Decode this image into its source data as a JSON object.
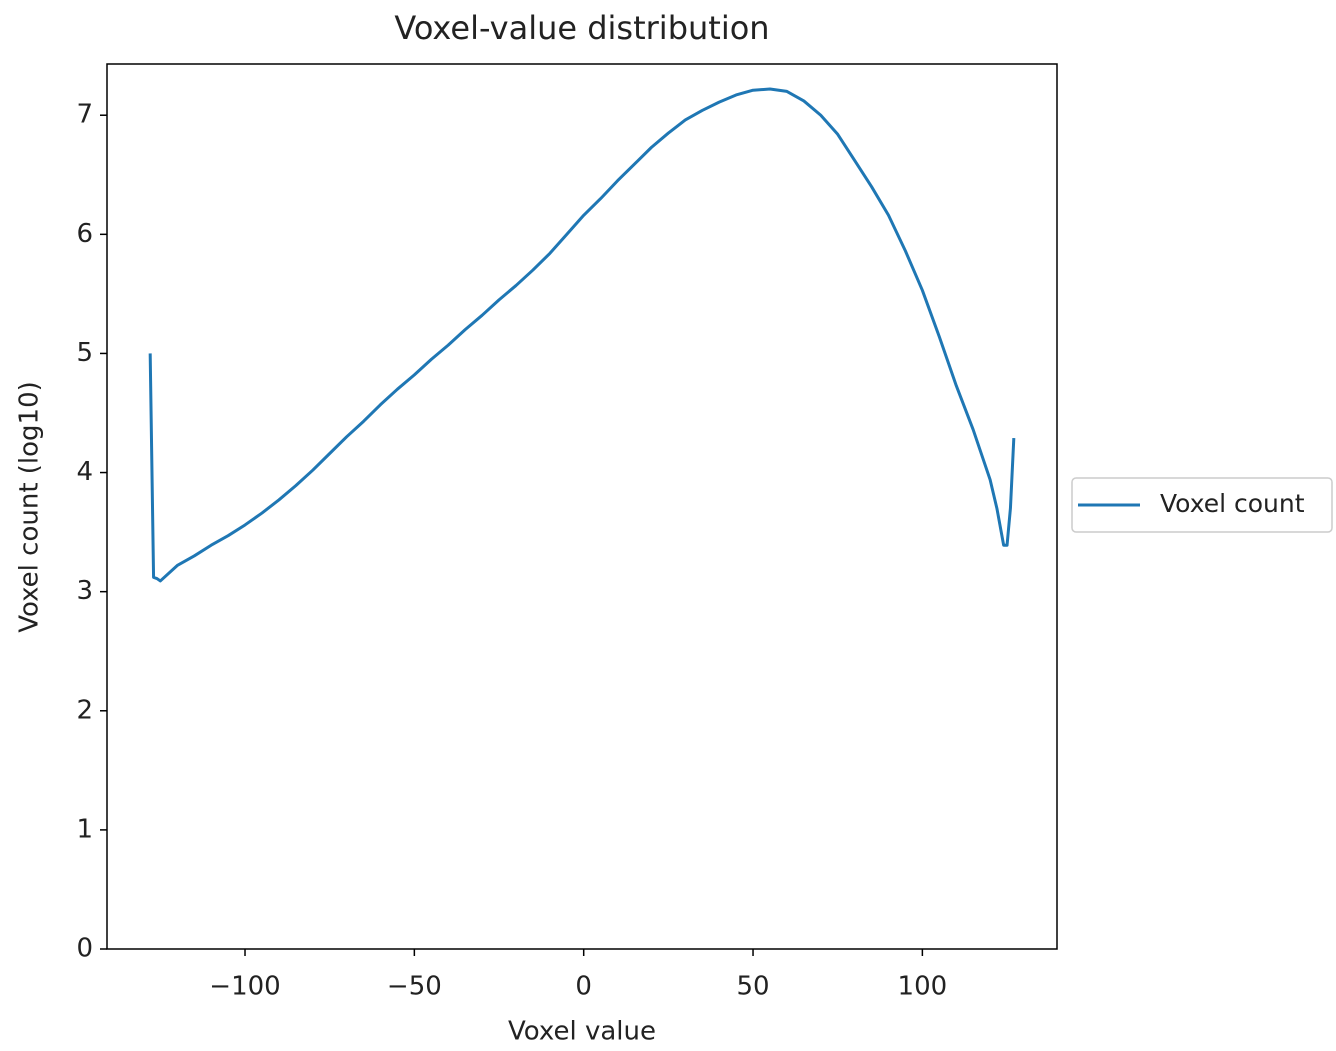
{
  "chart_data": {
    "type": "line",
    "title": "Voxel-value distribution",
    "x_label": "Voxel value",
    "y_label": "Voxel count (log10)",
    "x": [
      -128,
      -127,
      -126,
      -125,
      -120,
      -115,
      -110,
      -105,
      -100,
      -95,
      -90,
      -85,
      -80,
      -75,
      -70,
      -65,
      -60,
      -55,
      -50,
      -45,
      -40,
      -35,
      -30,
      -25,
      -20,
      -15,
      -10,
      -5,
      0,
      5,
      10,
      15,
      20,
      25,
      30,
      35,
      40,
      45,
      50,
      55,
      60,
      65,
      70,
      75,
      80,
      85,
      90,
      95,
      100,
      105,
      110,
      115,
      120,
      122,
      124,
      125,
      126,
      127
    ],
    "series": [
      {
        "name": "Voxel count",
        "color": "#1f77b4",
        "values": [
          5.0,
          3.12,
          3.11,
          3.09,
          3.22,
          3.3,
          3.39,
          3.47,
          3.56,
          3.66,
          3.77,
          3.89,
          4.02,
          4.16,
          4.3,
          4.43,
          4.57,
          4.7,
          4.82,
          4.95,
          5.07,
          5.2,
          5.32,
          5.45,
          5.57,
          5.7,
          5.84,
          6.0,
          6.16,
          6.3,
          6.45,
          6.59,
          6.73,
          6.85,
          6.96,
          7.04,
          7.11,
          7.17,
          7.21,
          7.22,
          7.2,
          7.12,
          7.0,
          6.84,
          6.62,
          6.4,
          6.16,
          5.86,
          5.53,
          5.14,
          4.73,
          4.36,
          3.94,
          3.7,
          3.39,
          3.39,
          3.7,
          4.29
        ]
      }
    ],
    "xlim": [
      -140.75,
      139.75
    ],
    "xticks": [
      {
        "value": -100,
        "label": "−100"
      },
      {
        "value": -50,
        "label": "−50"
      },
      0,
      50,
      100
    ],
    "ylim": [
      0,
      7.43
    ],
    "yticks": [
      0,
      1,
      2,
      3,
      4,
      5,
      6,
      7
    ],
    "grid": false,
    "legend": "right"
  }
}
